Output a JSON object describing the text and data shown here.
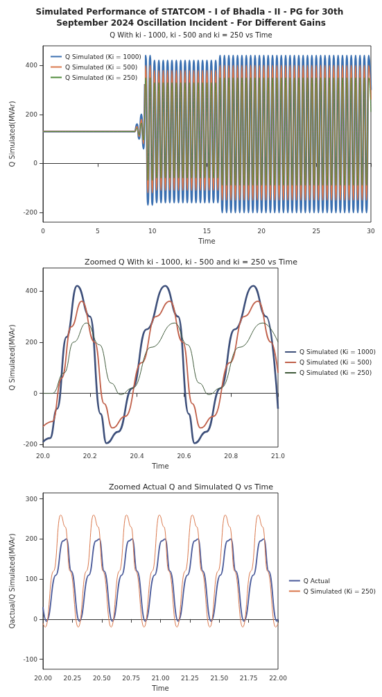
{
  "chart_data": [
    {
      "type": "line",
      "title": "Simulated Performance of STATCOM - I of Bhadla - II - PG for 30th September 2024 Oscillation Incident - For Different Gains",
      "subtitle": "Q With ki - 1000, ki - 500 and ki = 250 vs Time",
      "xlabel": "Time",
      "ylabel": "Q Simulated(MVAr)",
      "xlim": [
        0,
        30
      ],
      "xticks": [
        0,
        5,
        10,
        15,
        20,
        25,
        30
      ],
      "ylim": [
        -240,
        480
      ],
      "yticks": [
        -200,
        0,
        200,
        400
      ],
      "legend": "top left",
      "marker": "none",
      "x": [
        0,
        8.4,
        8.6,
        8.8,
        9.0,
        9.2,
        9.4,
        9.6,
        9.8,
        10.0,
        10.2,
        10.4,
        10.6,
        10.8,
        11.0,
        11.2,
        11.4,
        11.6,
        11.8,
        12.0,
        12.2,
        12.4,
        12.6,
        12.8,
        13.0,
        13.2,
        13.4,
        13.6,
        13.8,
        14.0,
        14.2,
        14.4,
        14.6,
        14.8,
        15.0,
        15.2,
        15.4,
        15.6,
        15.8,
        16.0,
        16.2,
        16.4,
        16.6,
        16.8,
        17.0,
        17.2,
        17.4,
        17.6,
        17.8,
        18.0,
        18.2,
        18.4,
        18.6,
        18.8,
        19.0,
        19.2,
        19.4,
        19.6,
        19.8,
        20.0,
        20.2,
        20.4,
        20.6,
        20.8,
        21.0,
        21.2,
        21.4,
        21.6,
        21.8,
        22.0,
        22.2,
        22.4,
        22.6,
        22.8,
        23.0,
        23.2,
        23.4,
        23.6,
        23.8,
        24.0,
        24.2,
        24.4,
        24.6,
        24.8,
        25.0,
        25.2,
        25.4,
        25.6,
        25.8,
        26.0,
        26.2,
        26.4,
        26.6,
        26.8,
        27.0,
        27.2,
        27.4,
        27.6,
        27.8,
        28.0,
        28.2,
        28.4,
        28.6,
        28.8,
        29.0,
        29.2,
        29.4,
        29.6,
        29.8,
        30.0
      ],
      "series": [
        {
          "name": "Q Simulated (Ki = 1000)",
          "color": "#3a6fb0",
          "values": [
            130,
            130,
            160,
            100,
            200,
            60,
            440,
            -170,
            440,
            -170,
            420,
            -160,
            420,
            -160,
            420,
            -160,
            420,
            -160,
            420,
            -160,
            420,
            -160,
            420,
            -160,
            420,
            -160,
            420,
            -160,
            420,
            -160,
            420,
            -160,
            420,
            -160,
            420,
            -160,
            420,
            -160,
            420,
            -160,
            440,
            -200,
            440,
            -200,
            440,
            -200,
            440,
            -200,
            440,
            -200,
            440,
            -200,
            440,
            -200,
            440,
            -200,
            440,
            -200,
            440,
            -200,
            440,
            -200,
            440,
            -200,
            440,
            -200,
            440,
            -200,
            440,
            -200,
            440,
            -200,
            440,
            -200,
            440,
            -200,
            440,
            -200,
            440,
            -200,
            440,
            -200,
            440,
            -200,
            440,
            -200,
            440,
            -200,
            440,
            -200,
            440,
            -200,
            440,
            -200,
            440,
            -200,
            440,
            -200,
            440,
            -200,
            440,
            -200,
            440,
            -200,
            440,
            -200,
            440,
            -200,
            440,
            300
          ]
        },
        {
          "name": "Q Simulated (Ki = 500)",
          "color": "#d9774b",
          "values": [
            130,
            130,
            150,
            110,
            180,
            80,
            400,
            -120,
            400,
            -120,
            380,
            -110,
            380,
            -110,
            380,
            -110,
            380,
            -110,
            380,
            -110,
            380,
            -110,
            380,
            -110,
            380,
            -110,
            380,
            -110,
            380,
            -110,
            380,
            -110,
            380,
            -110,
            380,
            -110,
            380,
            -110,
            380,
            -110,
            400,
            -150,
            400,
            -150,
            400,
            -150,
            400,
            -150,
            400,
            -150,
            400,
            -150,
            400,
            -150,
            400,
            -150,
            400,
            -150,
            400,
            -150,
            400,
            -150,
            400,
            -150,
            400,
            -150,
            400,
            -150,
            400,
            -150,
            400,
            -150,
            400,
            -150,
            400,
            -150,
            400,
            -150,
            400,
            -150,
            400,
            -150,
            400,
            -150,
            400,
            -150,
            400,
            -150,
            400,
            -150,
            400,
            -150,
            400,
            -150,
            400,
            -150,
            400,
            -150,
            400,
            -150,
            400,
            -150,
            400,
            -150,
            400,
            -150,
            400,
            -150,
            400,
            260
          ]
        },
        {
          "name": "Q Simulated (Ki = 250)",
          "color": "#4f8a3a",
          "values": [
            130,
            130,
            145,
            115,
            165,
            95,
            350,
            -70,
            350,
            -70,
            330,
            -60,
            330,
            -60,
            330,
            -60,
            330,
            -60,
            330,
            -60,
            330,
            -60,
            330,
            -60,
            330,
            -60,
            330,
            -60,
            330,
            -60,
            330,
            -60,
            330,
            -60,
            330,
            -60,
            330,
            -60,
            330,
            -60,
            350,
            -90,
            350,
            -90,
            350,
            -90,
            350,
            -90,
            350,
            -90,
            350,
            -90,
            350,
            -90,
            350,
            -90,
            350,
            -90,
            350,
            -90,
            350,
            -90,
            350,
            -90,
            350,
            -90,
            350,
            -90,
            350,
            -90,
            350,
            -90,
            350,
            -90,
            350,
            -90,
            350,
            -90,
            350,
            -90,
            350,
            -90,
            350,
            -90,
            350,
            -90,
            350,
            -90,
            350,
            -90,
            350,
            -90,
            350,
            -90,
            350,
            -90,
            350,
            -90,
            350,
            -90,
            350,
            -90,
            350,
            -90,
            350,
            -90,
            350,
            -90,
            350,
            210
          ]
        }
      ]
    },
    {
      "type": "line",
      "title": "Zoomed Q With ki - 1000, ki - 500 and ki = 250 vs Time",
      "xlabel": "Time",
      "ylabel": "Q Simulated(MVAr)",
      "xlim": [
        20,
        21
      ],
      "xticks": [
        {
          "value": 20,
          "label": "20.0"
        },
        20.2,
        20.4,
        20.6,
        20.8,
        {
          "value": 21,
          "label": "21.0"
        }
      ],
      "ylim": [
        -210,
        490
      ],
      "yticks": [
        -200,
        0,
        200,
        400
      ],
      "legend": "right",
      "marker": "none",
      "series": [
        {
          "name": "Q Simulated (Ki = 1000)",
          "color": "#3d4f7a",
          "x": [
            20.0,
            20.03,
            20.06,
            20.1,
            20.145,
            20.2,
            20.245,
            20.27,
            20.32,
            20.38,
            20.44,
            20.52,
            20.575,
            20.62,
            20.645,
            20.695,
            20.755,
            20.815,
            20.895,
            20.95,
            21.0
          ],
          "values": [
            -190,
            -175,
            -60,
            220,
            420,
            300,
            -80,
            -195,
            -150,
            20,
            250,
            420,
            300,
            -80,
            -195,
            -150,
            20,
            250,
            420,
            300,
            -60
          ]
        },
        {
          "name": "Q Simulated (Ki = 500)",
          "color": "#c0604a",
          "x": [
            20.0,
            20.04,
            20.08,
            20.12,
            20.165,
            20.22,
            20.26,
            20.295,
            20.35,
            20.42,
            20.48,
            20.54,
            20.595,
            20.635,
            20.67,
            20.725,
            20.795,
            20.855,
            20.915,
            20.97,
            21.0
          ],
          "values": [
            -130,
            -110,
            60,
            260,
            360,
            200,
            -40,
            -135,
            -90,
            120,
            300,
            360,
            200,
            -40,
            -135,
            -90,
            120,
            300,
            360,
            200,
            80
          ]
        },
        {
          "name": "Q Simulated (Ki = 250)",
          "color": "#3f5a3a",
          "x": [
            20.0,
            20.04,
            20.09,
            20.13,
            20.185,
            20.24,
            20.29,
            20.33,
            20.38,
            20.46,
            20.56,
            20.615,
            20.665,
            20.705,
            20.755,
            20.835,
            20.935,
            21.0
          ],
          "values": [
            0,
            0,
            80,
            200,
            275,
            190,
            40,
            -5,
            20,
            180,
            275,
            190,
            40,
            -5,
            20,
            180,
            275,
            200
          ]
        }
      ]
    },
    {
      "type": "line",
      "title": "Zoomed Actual Q and Simulated Q vs Time",
      "xlabel": "Time",
      "ylabel": "Qactual/Q Simulated(MVAr)",
      "xlim": [
        20,
        22
      ],
      "xticks": [
        {
          "value": 20,
          "label": "20.00"
        },
        {
          "value": 20.25,
          "label": "20.25"
        },
        {
          "value": 20.5,
          "label": "20.50"
        },
        {
          "value": 20.75,
          "label": "20.75"
        },
        {
          "value": 21,
          "label": "21.00"
        },
        {
          "value": 21.25,
          "label": "21.25"
        },
        {
          "value": 21.5,
          "label": "21.50"
        },
        {
          "value": 21.75,
          "label": "21.75"
        },
        {
          "value": 22,
          "label": "22.00"
        }
      ],
      "ylim": [
        -125,
        315
      ],
      "yticks": [
        -100,
        0,
        100,
        200,
        300
      ],
      "legend": "right",
      "marker": "none",
      "series": [
        {
          "name": "Q Actual",
          "color": "#4a5a9a",
          "x": [
            20.0,
            20.03,
            20.11,
            20.17,
            20.2,
            20.24,
            20.31,
            20.39,
            20.45,
            20.48,
            20.52,
            20.59,
            20.67,
            20.73,
            20.76,
            20.8,
            20.87,
            20.95,
            21.01,
            21.04,
            21.08,
            21.15,
            21.23,
            21.29,
            21.32,
            21.36,
            21.43,
            21.51,
            21.57,
            21.6,
            21.64,
            21.71,
            21.79,
            21.85,
            21.88,
            21.92,
            21.99,
            22.0
          ],
          "values": [
            30,
            -5,
            110,
            195,
            200,
            120,
            -5,
            110,
            195,
            200,
            120,
            -5,
            110,
            195,
            200,
            120,
            -5,
            110,
            195,
            200,
            120,
            -5,
            110,
            195,
            200,
            120,
            -5,
            110,
            195,
            200,
            120,
            -5,
            110,
            195,
            200,
            120,
            -5,
            0
          ]
        },
        {
          "name": "Q Simulated (Ki = 250)",
          "color": "#d9774b",
          "x": [
            20.0,
            20.02,
            20.09,
            20.15,
            20.19,
            20.23,
            20.3,
            20.37,
            20.43,
            20.47,
            20.51,
            20.58,
            20.65,
            20.71,
            20.75,
            20.79,
            20.86,
            20.93,
            20.99,
            21.03,
            21.07,
            21.14,
            21.21,
            21.27,
            21.31,
            21.35,
            21.42,
            21.49,
            21.55,
            21.59,
            21.63,
            21.7,
            21.77,
            21.83,
            21.87,
            21.91,
            21.98,
            22.0
          ],
          "values": [
            -10,
            -20,
            120,
            260,
            230,
            120,
            -20,
            120,
            260,
            230,
            120,
            -20,
            120,
            260,
            230,
            120,
            -20,
            120,
            260,
            230,
            120,
            -20,
            120,
            260,
            230,
            120,
            -20,
            120,
            260,
            230,
            120,
            -20,
            120,
            260,
            230,
            120,
            -20,
            -10
          ]
        }
      ]
    }
  ]
}
